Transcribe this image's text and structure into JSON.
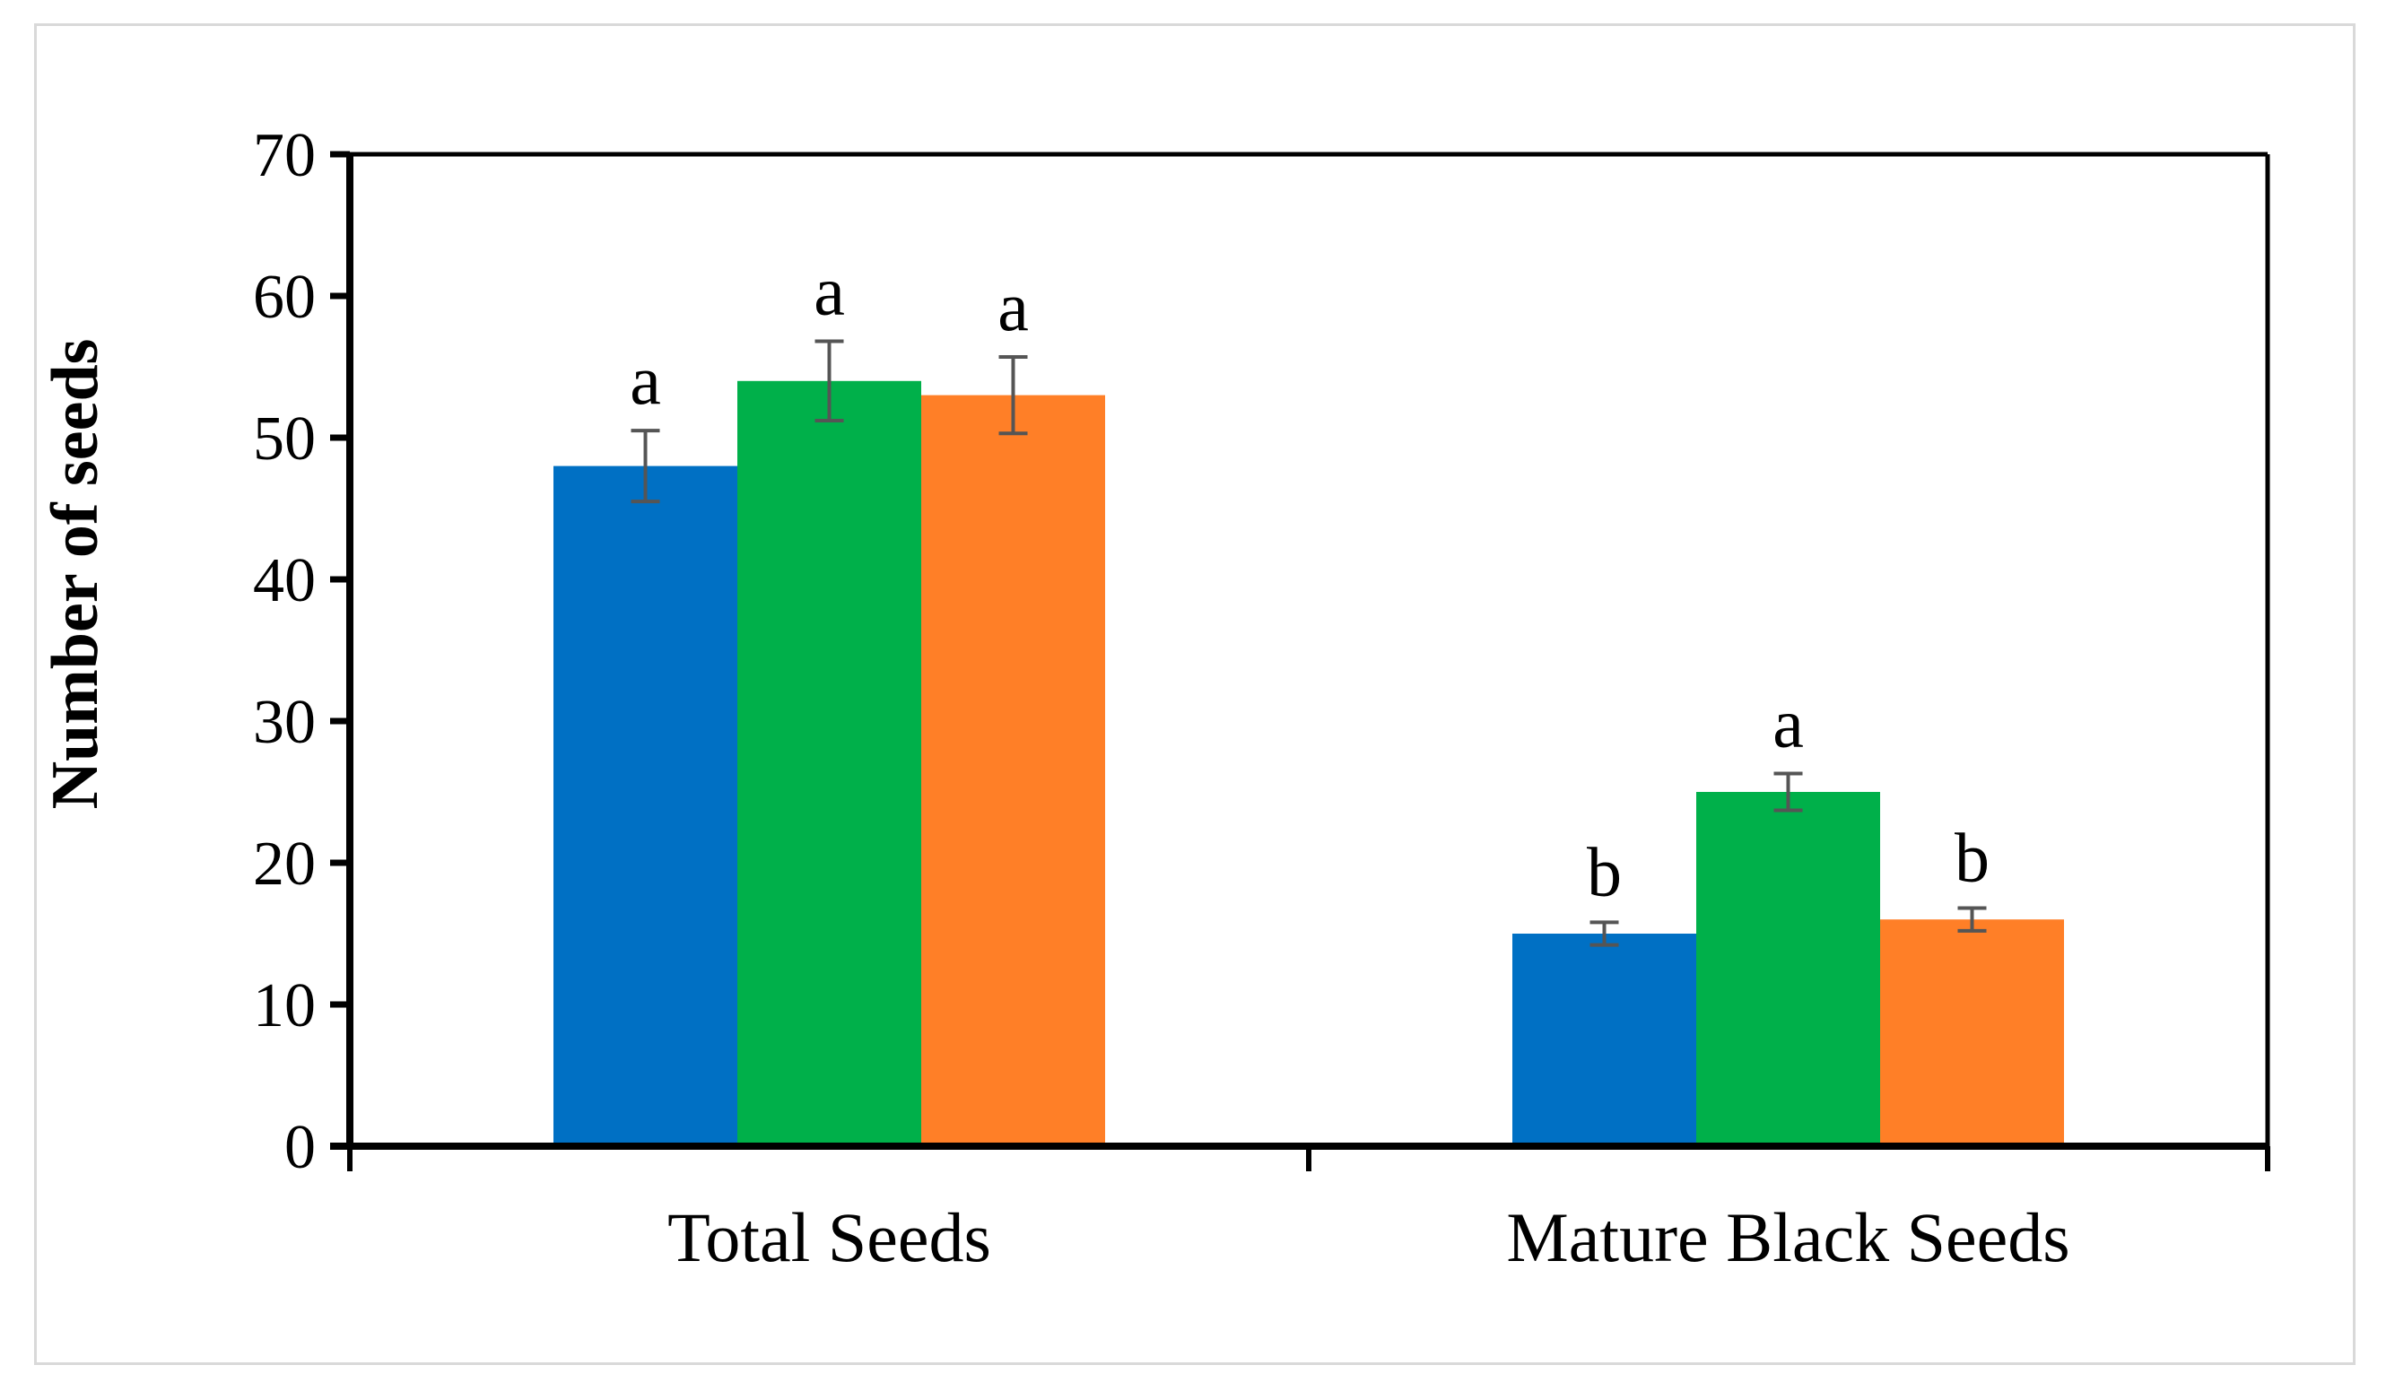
{
  "chart_data": {
    "type": "bar",
    "title": "",
    "xlabel": "",
    "ylabel": "Number of seeds",
    "ylim": [
      0,
      70
    ],
    "yticks": [
      0,
      10,
      20,
      30,
      40,
      50,
      60,
      70
    ],
    "grid": false,
    "legend": "none",
    "categories": [
      "Total Seeds",
      "Mature Black Seeds"
    ],
    "series": [
      {
        "name": "series-1",
        "color": "#0070C4",
        "values": [
          48,
          15
        ],
        "errors": [
          2.5,
          0.8
        ],
        "letters": [
          "a",
          "b"
        ]
      },
      {
        "name": "series-2",
        "color": "#00B04A",
        "values": [
          54,
          25
        ],
        "errors": [
          2.8,
          1.3
        ],
        "letters": [
          "a",
          "a"
        ]
      },
      {
        "name": "series-3",
        "color": "#FF7F27",
        "values": [
          53,
          16
        ],
        "errors": [
          2.7,
          0.8
        ],
        "letters": [
          "a",
          "b"
        ]
      }
    ],
    "error_bar_color": "#555555",
    "axis_color": "#000000"
  }
}
